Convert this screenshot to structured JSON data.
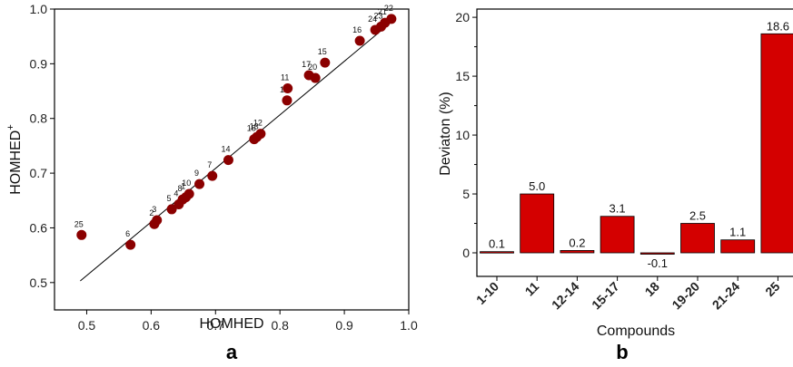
{
  "panels": {
    "a": "a",
    "b": "b"
  },
  "chart_data": [
    {
      "type": "scatter",
      "panel_label": "a",
      "xlabel": "HOMHED",
      "ylabel": "HOMHED",
      "ylabel_sup": "+",
      "xlim": [
        0.45,
        1.0
      ],
      "ylim": [
        0.45,
        1.0
      ],
      "xticks": [
        0.5,
        0.6,
        0.7,
        0.8,
        0.9,
        1.0
      ],
      "xtick_labels": [
        "0.5",
        "0.6",
        "0.7",
        "0.8",
        "0.9",
        "1.0"
      ],
      "yticks": [
        0.5,
        0.6,
        0.7,
        0.8,
        0.9,
        1.0
      ],
      "ytick_labels": [
        "0.5",
        "0.6",
        "0.7",
        "0.8",
        "0.9",
        "1.0"
      ],
      "marker_color": "#8b0000",
      "line_color": "#000000",
      "fit_line": {
        "x": [
          0.49,
          0.975
        ],
        "y": [
          0.503,
          0.978
        ]
      },
      "points": [
        {
          "label": "25",
          "x": 0.492,
          "y": 0.587
        },
        {
          "label": "6",
          "x": 0.568,
          "y": 0.569
        },
        {
          "label": "2",
          "x": 0.605,
          "y": 0.607
        },
        {
          "label": "3",
          "x": 0.609,
          "y": 0.614
        },
        {
          "label": "5",
          "x": 0.632,
          "y": 0.634
        },
        {
          "label": "4",
          "x": 0.643,
          "y": 0.643
        },
        {
          "label": "8",
          "x": 0.649,
          "y": 0.652
        },
        {
          "label": "1",
          "x": 0.654,
          "y": 0.656
        },
        {
          "label": "10",
          "x": 0.659,
          "y": 0.662
        },
        {
          "label": "9",
          "x": 0.675,
          "y": 0.68
        },
        {
          "label": "7",
          "x": 0.695,
          "y": 0.695
        },
        {
          "label": "14",
          "x": 0.72,
          "y": 0.724
        },
        {
          "label": "18",
          "x": 0.76,
          "y": 0.762
        },
        {
          "label": "13",
          "x": 0.764,
          "y": 0.766
        },
        {
          "label": "12",
          "x": 0.77,
          "y": 0.772
        },
        {
          "label": "19",
          "x": 0.811,
          "y": 0.833
        },
        {
          "label": "11",
          "x": 0.812,
          "y": 0.855
        },
        {
          "label": "17",
          "x": 0.845,
          "y": 0.879
        },
        {
          "label": "20",
          "x": 0.855,
          "y": 0.874
        },
        {
          "label": "15",
          "x": 0.87,
          "y": 0.902
        },
        {
          "label": "16",
          "x": 0.924,
          "y": 0.942
        },
        {
          "label": "24",
          "x": 0.948,
          "y": 0.962
        },
        {
          "label": "23",
          "x": 0.957,
          "y": 0.968
        },
        {
          "label": "21",
          "x": 0.963,
          "y": 0.975
        },
        {
          "label": "22",
          "x": 0.973,
          "y": 0.982
        }
      ]
    },
    {
      "type": "bar",
      "panel_label": "b",
      "xlabel": "Compounds",
      "ylabel": "Deviaton (%)",
      "ylim": [
        -2,
        20.7
      ],
      "yticks": [
        0,
        5,
        10,
        15,
        20
      ],
      "ytick_labels": [
        "0",
        "5",
        "10",
        "15",
        "20"
      ],
      "bar_color": "#d40000",
      "categories": [
        "1-10",
        "11",
        "12-14",
        "15-17",
        "18",
        "19-20",
        "21-24",
        "25"
      ],
      "values": [
        0.1,
        5.0,
        0.2,
        3.1,
        -0.1,
        2.5,
        1.1,
        18.6
      ],
      "value_labels": [
        "0.1",
        "5.0",
        "0.2",
        "3.1",
        "-0.1",
        "2.5",
        "1.1",
        "18.6"
      ]
    }
  ]
}
